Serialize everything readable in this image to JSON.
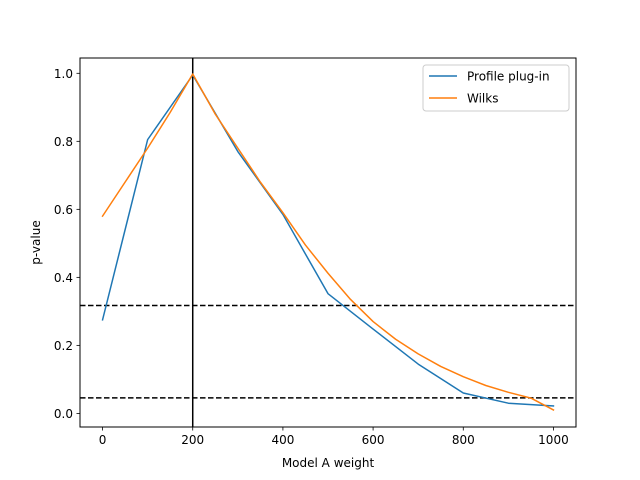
{
  "chart_data": {
    "type": "line",
    "title": "",
    "xlabel": "Model A weight",
    "ylabel": "p-value",
    "xlim": [
      -50,
      1050
    ],
    "ylim": [
      -0.04,
      1.045
    ],
    "xticks": [
      0,
      200,
      400,
      600,
      800,
      1000
    ],
    "yticks": [
      0.0,
      0.2,
      0.4,
      0.6,
      0.8,
      1.0
    ],
    "xtick_labels": [
      "0",
      "200",
      "400",
      "600",
      "800",
      "1000"
    ],
    "ytick_labels": [
      "0.0",
      "0.2",
      "0.4",
      "0.6",
      "0.8",
      "1.0"
    ],
    "grid": false,
    "legend_position": "top-right",
    "series": [
      {
        "name": "Profile plug-in",
        "color": "#1f77b4",
        "x": [
          0,
          100,
          200,
          300,
          400,
          500,
          600,
          700,
          800,
          900,
          1000
        ],
        "y": [
          0.275,
          0.805,
          0.995,
          0.77,
          0.585,
          0.352,
          0.248,
          0.145,
          0.06,
          0.03,
          0.022
        ]
      },
      {
        "name": "Wilks",
        "color": "#ff7f0e",
        "x": [
          0,
          50,
          100,
          150,
          200,
          250,
          300,
          350,
          400,
          450,
          500,
          550,
          600,
          650,
          700,
          750,
          800,
          850,
          900,
          950,
          1000
        ],
        "y": [
          0.58,
          0.68,
          0.78,
          0.885,
          0.998,
          0.88,
          0.78,
          0.68,
          0.59,
          0.495,
          0.412,
          0.335,
          0.27,
          0.218,
          0.175,
          0.138,
          0.108,
          0.082,
          0.062,
          0.045,
          0.01
        ]
      }
    ],
    "reference_lines": {
      "vertical": {
        "x": 200,
        "color": "#000000",
        "style": "solid"
      },
      "horizontal": [
        {
          "y": 0.3173,
          "color": "#000000",
          "style": "dashed"
        },
        {
          "y": 0.0455,
          "color": "#000000",
          "style": "dashed"
        }
      ]
    }
  }
}
